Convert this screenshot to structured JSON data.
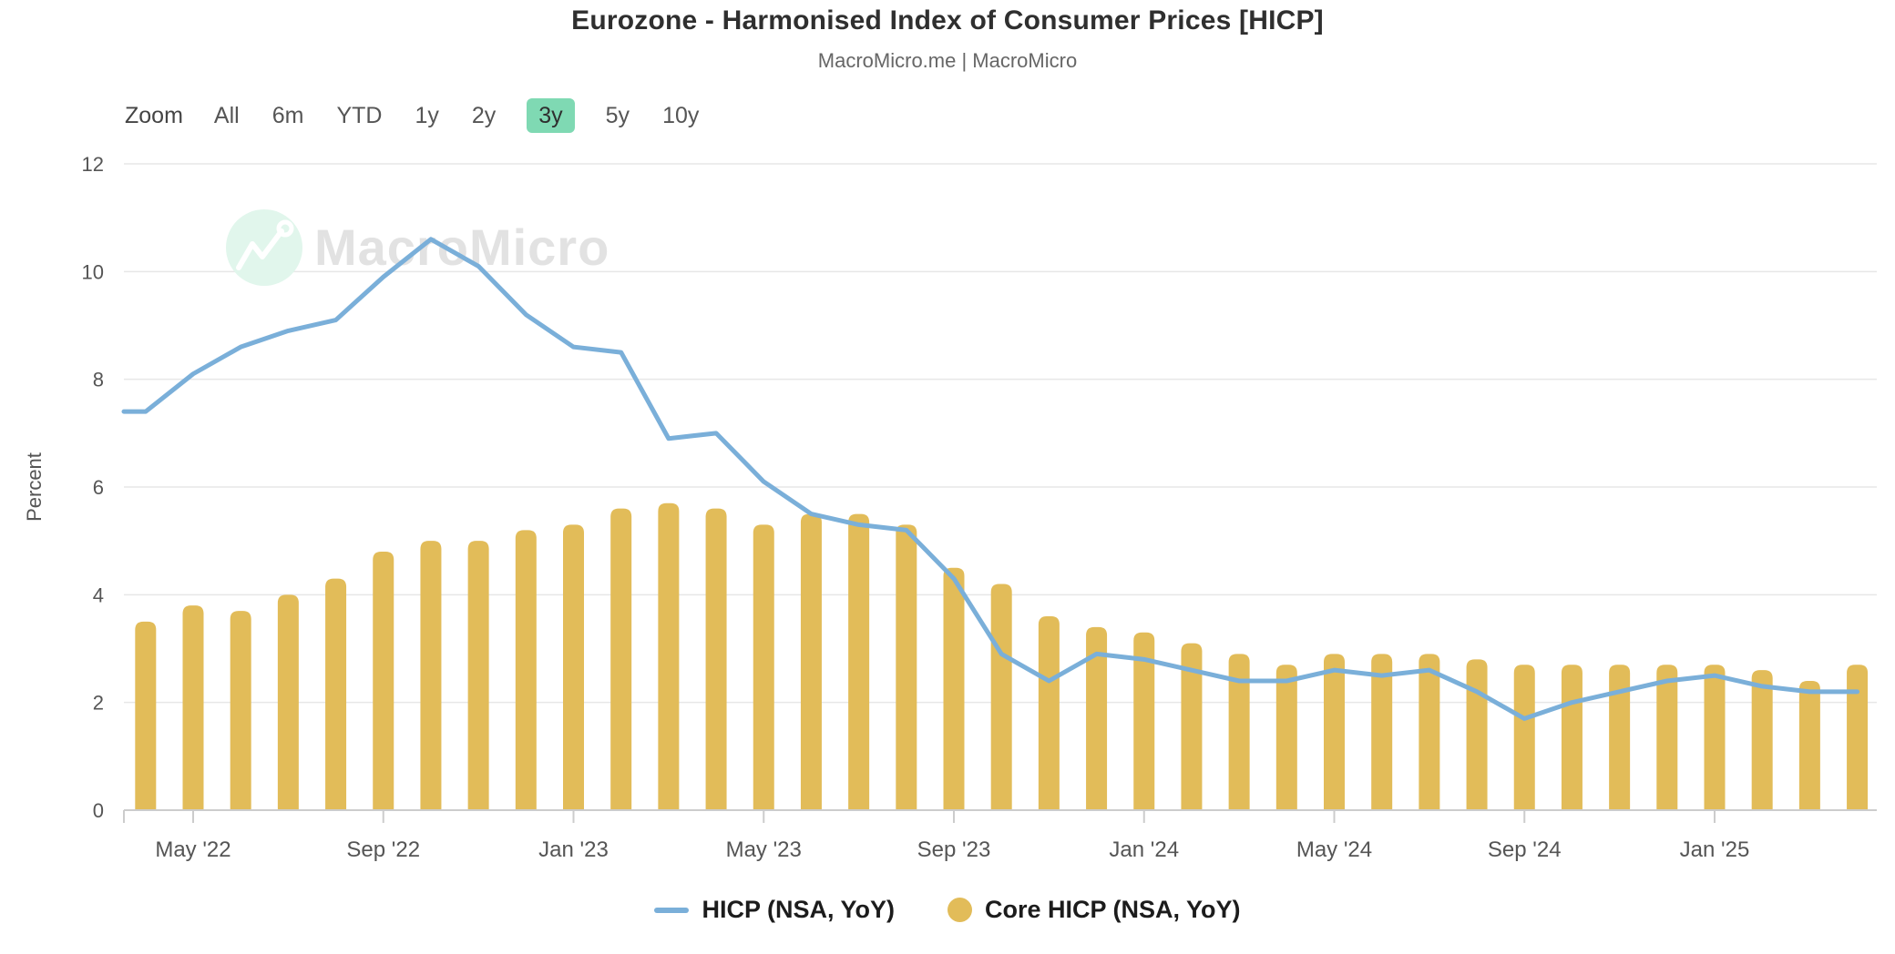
{
  "header": {
    "title": "Eurozone - Harmonised Index of Consumer Prices [HICP]",
    "subtitle": "MacroMicro.me | MacroMicro"
  },
  "toolbar": {
    "zoom_label": "Zoom",
    "ranges": [
      "All",
      "6m",
      "YTD",
      "1y",
      "2y",
      "3y",
      "5y",
      "10y"
    ],
    "active_range": "3y"
  },
  "watermark": {
    "brand": "MacroMicro"
  },
  "colors": {
    "line": "#7aafd9",
    "bar": "#e2bc59",
    "active_range_bg": "#7fd9b3",
    "grid": "#e7e7e7",
    "axis_line": "#cccccc",
    "axis_text": "#555555",
    "watermark_circle": "#e1f6ec",
    "watermark_text": "#e2e2e2"
  },
  "chart_data": {
    "type": "line+bar",
    "title": "Eurozone - Harmonised Index of Consumer Prices [HICP]",
    "ylabel": "Percent",
    "ylim": [
      0,
      12
    ],
    "y_ticks": [
      0,
      2,
      4,
      6,
      8,
      10,
      12
    ],
    "grid": true,
    "legend_position": "bottom",
    "categories": [
      "Apr '22",
      "May '22",
      "Jun '22",
      "Jul '22",
      "Aug '22",
      "Sep '22",
      "Oct '22",
      "Nov '22",
      "Dec '22",
      "Jan '23",
      "Feb '23",
      "Mar '23",
      "Apr '23",
      "May '23",
      "Jun '23",
      "Jul '23",
      "Aug '23",
      "Sep '23",
      "Oct '23",
      "Nov '23",
      "Dec '23",
      "Jan '24",
      "Feb '24",
      "Mar '24",
      "Apr '24",
      "May '24",
      "Jun '24",
      "Jul '24",
      "Aug '24",
      "Sep '24",
      "Oct '24",
      "Nov '24",
      "Dec '24",
      "Jan '25",
      "Feb '25",
      "Mar '25",
      "Apr '25"
    ],
    "x_tick_labels": [
      {
        "label": "May '22",
        "index": 1
      },
      {
        "label": "Sep '22",
        "index": 5
      },
      {
        "label": "Jan '23",
        "index": 9
      },
      {
        "label": "May '23",
        "index": 13
      },
      {
        "label": "Sep '23",
        "index": 17
      },
      {
        "label": "Jan '24",
        "index": 21
      },
      {
        "label": "May '24",
        "index": 25
      },
      {
        "label": "Sep '24",
        "index": 29
      },
      {
        "label": "Jan '25",
        "index": 33
      }
    ],
    "series": [
      {
        "name": "HICP (NSA, YoY)",
        "type": "line",
        "color": "#7aafd9",
        "lead_in_value": 7.4,
        "values": [
          7.4,
          8.1,
          8.6,
          8.9,
          9.1,
          9.9,
          10.6,
          10.1,
          9.2,
          8.6,
          8.5,
          6.9,
          7.0,
          6.1,
          5.5,
          5.3,
          5.2,
          4.3,
          2.9,
          2.4,
          2.9,
          2.8,
          2.6,
          2.4,
          2.4,
          2.6,
          2.5,
          2.6,
          2.2,
          1.7,
          2.0,
          2.2,
          2.4,
          2.5,
          2.3,
          2.2,
          2.2
        ]
      },
      {
        "name": "Core HICP (NSA, YoY)",
        "type": "bar",
        "color": "#e2bc59",
        "values": [
          3.5,
          3.8,
          3.7,
          4.0,
          4.3,
          4.8,
          5.0,
          5.0,
          5.2,
          5.3,
          5.6,
          5.7,
          5.6,
          5.3,
          5.5,
          5.5,
          5.3,
          4.5,
          4.2,
          3.6,
          3.4,
          3.3,
          3.1,
          2.9,
          2.7,
          2.9,
          2.9,
          2.9,
          2.8,
          2.7,
          2.7,
          2.7,
          2.7,
          2.7,
          2.6,
          2.4,
          2.7
        ]
      }
    ]
  }
}
